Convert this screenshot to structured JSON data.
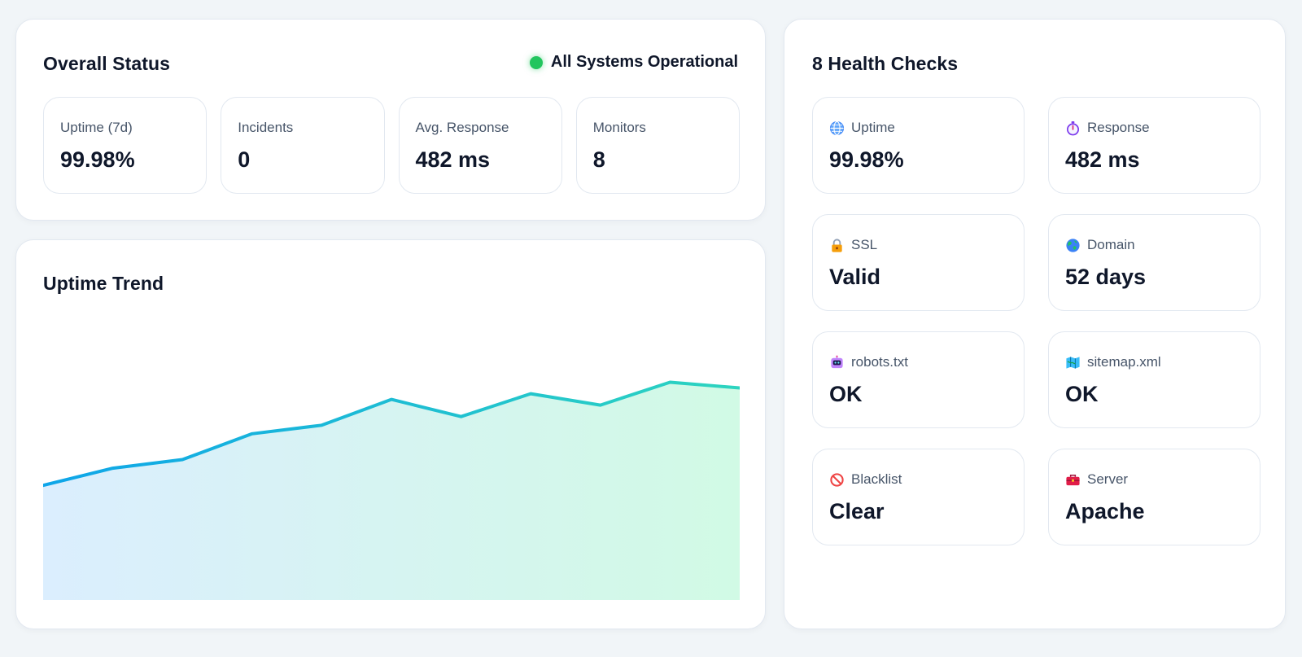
{
  "overall": {
    "title": "Overall Status",
    "status_text": "All Systems Operational",
    "status_color": "#22c55e",
    "metrics": [
      {
        "label": "Uptime (7d)",
        "value": "99.98%"
      },
      {
        "label": "Incidents",
        "value": "0"
      },
      {
        "label": "Avg. Response",
        "value": "482 ms"
      },
      {
        "label": "Monitors",
        "value": "8"
      }
    ]
  },
  "trend": {
    "title": "Uptime Trend"
  },
  "chart_data": {
    "type": "area",
    "title": "Uptime Trend",
    "xlabel": "",
    "ylabel": "",
    "x": [
      1,
      2,
      3,
      4,
      5,
      6,
      7,
      8,
      9,
      10,
      11
    ],
    "series": [
      {
        "values": [
          40,
          46,
          49,
          58,
          61,
          70,
          64,
          72,
          68,
          76,
          74
        ]
      }
    ],
    "ylim": [
      0,
      100
    ],
    "grid": false,
    "colors": {
      "line_start": "#0ea5e9",
      "line_end": "#2dd4bf",
      "fill_start": "#dbeefe",
      "fill_end": "#d1fae5"
    }
  },
  "health": {
    "title": "8 Health Checks",
    "items": [
      {
        "icon": "globe-icon",
        "label": "Uptime",
        "value": "99.98%"
      },
      {
        "icon": "stopwatch-icon",
        "label": "Response",
        "value": "482 ms"
      },
      {
        "icon": "lock-icon",
        "label": "SSL",
        "value": "Valid"
      },
      {
        "icon": "earth-icon",
        "label": "Domain",
        "value": "52 days"
      },
      {
        "icon": "robot-icon",
        "label": "robots.txt",
        "value": "OK"
      },
      {
        "icon": "map-icon",
        "label": "sitemap.xml",
        "value": "OK"
      },
      {
        "icon": "prohibited-icon",
        "label": "Blacklist",
        "value": "Clear"
      },
      {
        "icon": "toolbox-icon",
        "label": "Server",
        "value": "Apache"
      }
    ]
  }
}
